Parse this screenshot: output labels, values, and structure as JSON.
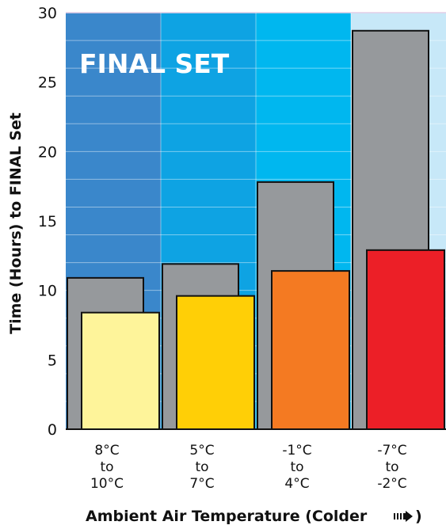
{
  "chart_data": {
    "type": "bar",
    "title": "FINAL SET",
    "ylabel": "Time (Hours) to FINAL Set",
    "xlabel": "Ambient Air Temperature (Colder",
    "xlabel_arrow_icon": "striped-right-arrow-icon",
    "ylim": [
      0,
      30
    ],
    "yticks": [
      "0",
      "5",
      "10",
      "15",
      "20",
      "25",
      "30"
    ],
    "grid": true,
    "categories": [
      [
        "8°C",
        "to",
        "10°C"
      ],
      [
        "5°C",
        "to",
        "7°C"
      ],
      [
        "-1°C",
        "to",
        "4°C"
      ],
      [
        "-7°C",
        "to",
        "-2°C"
      ]
    ],
    "series": [
      {
        "values": [
          10.9,
          11.9,
          17.8,
          28.7
        ],
        "color": "#96999c"
      },
      {
        "values": [
          8.4,
          9.6,
          11.4,
          12.9
        ],
        "colors": [
          "#fef49a",
          "#ffcf06",
          "#f47a22",
          "#ec1f27"
        ]
      }
    ],
    "band_colors": [
      "#3a87cb",
      "#0ea3e3",
      "#00b7ef",
      "#c7e8f8"
    ]
  }
}
